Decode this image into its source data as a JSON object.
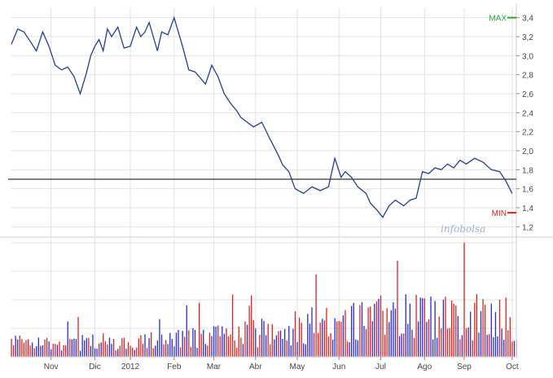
{
  "colors": {
    "price_line": "#1f3f93",
    "volume_up": "#e02020",
    "volume_down": "#2a2ad0",
    "reference_line": "#000000",
    "max_marker": "#22aa33",
    "min_marker": "#cc2222",
    "grid": "#e2e2e2",
    "frame": "#cccccc"
  },
  "watermark": "infobolsa",
  "chart_data": [
    {
      "type": "line",
      "name": "price",
      "ylim": [
        1.1,
        3.5
      ],
      "yticks": [
        "1,2",
        "1,4",
        "1,6",
        "1,8",
        "2,0",
        "2,2",
        "2,4",
        "2,6",
        "2,8",
        "3,0",
        "3,2",
        "3,4"
      ],
      "ytick_values": [
        1.2,
        1.4,
        1.6,
        1.8,
        2.0,
        2.2,
        2.4,
        2.6,
        2.8,
        3.0,
        3.2,
        3.4
      ],
      "reference_value": 1.7,
      "max": {
        "label": "MAX",
        "value": 3.4
      },
      "min": {
        "label": "MIN",
        "value": 1.27
      },
      "xlim": [
        0,
        242
      ],
      "grid": true,
      "x": [
        0,
        3,
        6,
        9,
        12,
        15,
        18,
        21,
        24,
        27,
        30,
        33,
        36,
        38,
        40,
        42,
        44,
        46,
        48,
        51,
        54,
        57,
        60,
        62,
        64,
        66,
        68,
        70,
        72,
        75,
        78,
        82,
        85,
        88,
        90,
        93,
        96,
        99,
        102,
        105,
        108,
        110,
        113,
        116,
        120,
        124,
        128,
        130,
        133,
        136,
        140,
        144,
        148,
        152,
        155,
        158,
        160,
        163,
        166,
        170,
        172,
        175,
        178,
        181,
        184,
        188,
        191,
        194,
        197,
        200,
        203,
        206,
        209,
        212,
        215,
        218,
        222,
        226,
        230,
        234,
        237,
        240
      ],
      "y": [
        3.12,
        3.28,
        3.25,
        3.15,
        3.05,
        3.25,
        3.1,
        2.9,
        2.85,
        2.88,
        2.78,
        2.6,
        2.82,
        3.0,
        3.1,
        3.17,
        3.05,
        3.28,
        3.2,
        3.3,
        3.08,
        3.1,
        3.3,
        3.2,
        3.25,
        3.35,
        3.2,
        3.05,
        3.25,
        3.22,
        3.4,
        3.1,
        2.85,
        2.83,
        2.78,
        2.7,
        2.9,
        2.78,
        2.6,
        2.5,
        2.42,
        2.35,
        2.3,
        2.25,
        2.3,
        2.12,
        1.95,
        1.85,
        1.78,
        1.6,
        1.55,
        1.62,
        1.58,
        1.62,
        1.92,
        1.72,
        1.78,
        1.72,
        1.62,
        1.55,
        1.45,
        1.38,
        1.3,
        1.42,
        1.48,
        1.42,
        1.48,
        1.5,
        1.78,
        1.76,
        1.82,
        1.8,
        1.86,
        1.82,
        1.9,
        1.86,
        1.92,
        1.88,
        1.8,
        1.78,
        1.68,
        1.55
      ]
    },
    {
      "type": "bar",
      "name": "volume",
      "months": [
        "Nov",
        "Dic",
        "2012",
        "Feb",
        "Mar",
        "Abr",
        "May",
        "Jun",
        "Jul",
        "Ago",
        "Sep",
        "Oct"
      ],
      "month_positions": [
        19,
        40,
        57,
        78,
        97,
        117,
        137,
        157,
        177,
        198,
        217,
        240
      ],
      "xlim": [
        0,
        242
      ],
      "ylim": [
        0,
        100
      ],
      "grid": true
    }
  ]
}
